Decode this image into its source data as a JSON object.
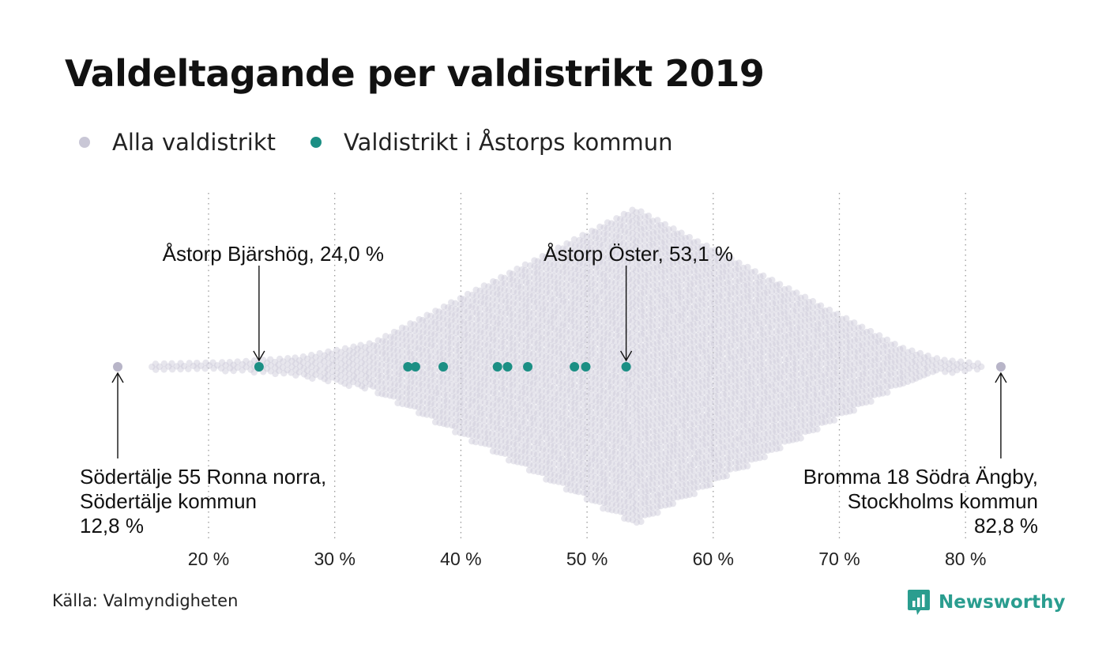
{
  "title": "Valdeltagande per valdistrikt 2019",
  "legend": {
    "all_label": "Alla valdistrikt",
    "highlight_label": "Valdistrikt i Åstorps kommun"
  },
  "colors": {
    "all": "#c9c7d6",
    "highlight": "#1b8f84",
    "grid": "#9a9a9a",
    "brand": "#2a9d8f"
  },
  "source": "Källa: Valmyndigheten",
  "brand_name": "Newsworthy",
  "chart_data": {
    "type": "scatter",
    "subtype": "beeswarm",
    "x_unit": "%",
    "xlim": [
      12.8,
      82.8
    ],
    "x_ticks": [
      20,
      30,
      40,
      50,
      60,
      70,
      80
    ],
    "x_tick_labels": [
      "20 %",
      "30 %",
      "40 %",
      "50 %",
      "60 %",
      "70 %",
      "80 %"
    ],
    "grid": "vertical-dotted",
    "distribution_peak": 53.8,
    "series": [
      {
        "name": "Valdistrikt i Åstorps kommun",
        "values": [
          24.0,
          35.8,
          36.4,
          38.6,
          42.9,
          43.7,
          45.3,
          49.0,
          49.9,
          53.1
        ]
      }
    ],
    "annotations": [
      {
        "text": "Åstorp  Bjärshög, 24,0 %",
        "x": 24.0,
        "placement": "above",
        "align": "end"
      },
      {
        "text": "Åstorp  Öster, 53,1 %",
        "x": 53.1,
        "placement": "above",
        "align": "end"
      },
      {
        "lines": [
          "Södertälje 55 Ronna norra,",
          "Södertälje kommun",
          "12,8 %"
        ],
        "x": 12.8,
        "placement": "below",
        "align": "start"
      },
      {
        "lines": [
          "Bromma 18 Södra Ängby,",
          "Stockholms kommun",
          "82,8 %"
        ],
        "x": 82.8,
        "placement": "below",
        "align": "end"
      }
    ]
  }
}
